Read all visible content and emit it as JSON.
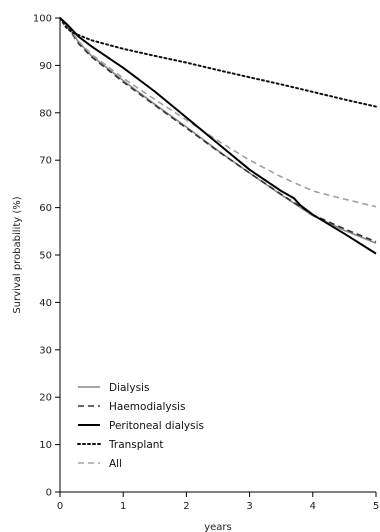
{
  "chart_data": {
    "type": "line",
    "title": "",
    "xlabel": "years",
    "ylabel": "Survival probability (%)",
    "xlim": [
      0,
      5
    ],
    "ylim": [
      0,
      100
    ],
    "x_ticks": [
      0,
      1,
      2,
      3,
      4,
      5
    ],
    "y_ticks": [
      0,
      10,
      20,
      30,
      40,
      50,
      60,
      70,
      80,
      90,
      100
    ],
    "grid": false,
    "legend_position": "bottom-left",
    "series": [
      {
        "name": "Dialysis",
        "color": "#8a8a8a",
        "style": "solid",
        "x": [
          0,
          0.1,
          0.3,
          0.5,
          1.0,
          1.5,
          2.0,
          2.5,
          3.0,
          3.5,
          4.0,
          4.5,
          5.0
        ],
        "y": [
          100,
          98.6,
          94.8,
          92.0,
          86.8,
          81.8,
          77.0,
          72.0,
          67.3,
          62.7,
          58.3,
          55.2,
          52.5
        ]
      },
      {
        "name": "Haemodialysis",
        "color": "#333333",
        "style": "dashed",
        "x": [
          0,
          0.1,
          0.3,
          0.5,
          1.0,
          1.5,
          2.0,
          2.5,
          3.0,
          3.5,
          4.0,
          4.5,
          5.0
        ],
        "y": [
          100,
          98.5,
          94.5,
          91.8,
          86.5,
          81.6,
          76.8,
          71.9,
          67.3,
          62.8,
          58.5,
          55.5,
          52.8
        ]
      },
      {
        "name": "Peritoneal dialysis",
        "color": "#000000",
        "style": "solid",
        "x": [
          0,
          0.1,
          0.3,
          0.5,
          1.0,
          1.5,
          2.0,
          2.5,
          3.0,
          3.5,
          3.7,
          3.8,
          4.0,
          4.5,
          5.0
        ],
        "y": [
          100,
          98.8,
          96.0,
          94.0,
          89.5,
          84.5,
          79.0,
          73.5,
          68.0,
          63.5,
          62.0,
          60.5,
          58.5,
          54.5,
          50.3
        ]
      },
      {
        "name": "Transplant",
        "color": "#111111",
        "style": "dotted",
        "x": [
          0,
          0.1,
          0.2,
          0.5,
          1.0,
          1.5,
          2.0,
          2.5,
          3.0,
          3.5,
          4.0,
          4.5,
          5.0
        ],
        "y": [
          100,
          98.0,
          96.9,
          95.3,
          93.5,
          92.0,
          90.6,
          89.0,
          87.5,
          86.0,
          84.4,
          82.8,
          81.3
        ]
      },
      {
        "name": "All",
        "color": "#a0a0a0",
        "style": "dashed",
        "x": [
          0,
          0.1,
          0.3,
          0.5,
          1.0,
          1.5,
          2.0,
          2.5,
          3.0,
          3.5,
          4.0,
          4.5,
          5.0
        ],
        "y": [
          100,
          98.7,
          95.0,
          92.3,
          87.3,
          82.8,
          78.5,
          74.1,
          70.0,
          66.5,
          63.5,
          61.8,
          60.2
        ]
      }
    ]
  }
}
